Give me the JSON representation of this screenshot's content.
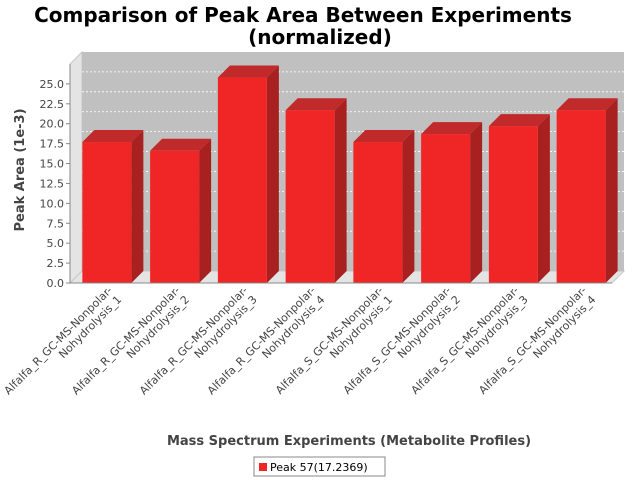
{
  "chart_data": {
    "type": "bar",
    "title": "Comparison of Peak Area Between Experiments",
    "subtitle": "(normalized)",
    "xlabel": "Mass Spectrum Experiments (Metabolite Profiles)",
    "ylabel": "Peak Area (1e-3)",
    "ylim": [
      0,
      27.5
    ],
    "yticks": [
      "0.0",
      "2.5",
      "5.0",
      "7.5",
      "10.0",
      "12.5",
      "15.0",
      "17.5",
      "20.0",
      "22.5",
      "25.0"
    ],
    "grid": true,
    "legend_position": "bottom-center",
    "categories": [
      [
        "Alfalfa_R_GC-MS-Nonpolar-",
        "Nohydrolysis_1"
      ],
      [
        "Alfalfa_R_GC-MS-Nonpolar-",
        "Nohydrolysis_2"
      ],
      [
        "Alfalfa_R_GC-MS-Nonpolar-",
        "Nohydrolysis_3"
      ],
      [
        "Alfalfa_R_GC-MS-Nonpolar-",
        "Nohydrolysis_4"
      ],
      [
        "Alfalfa_S_GC-MS-Nonpolar-",
        "Nohydrolysis_1"
      ],
      [
        "Alfalfa_S_GC-MS-Nonpolar-",
        "Nohydrolysis_2"
      ],
      [
        "Alfalfa_S_GC-MS-Nonpolar-",
        "Nohydrolysis_3"
      ],
      [
        "Alfalfa_S_GC-MS-Nonpolar-",
        "Nohydrolysis_4"
      ]
    ],
    "series": [
      {
        "name": "Peak 57(17.2369)",
        "color": "#f02525",
        "values": [
          17.7,
          16.6,
          25.8,
          21.7,
          17.7,
          18.7,
          19.7,
          21.7
        ]
      }
    ]
  }
}
